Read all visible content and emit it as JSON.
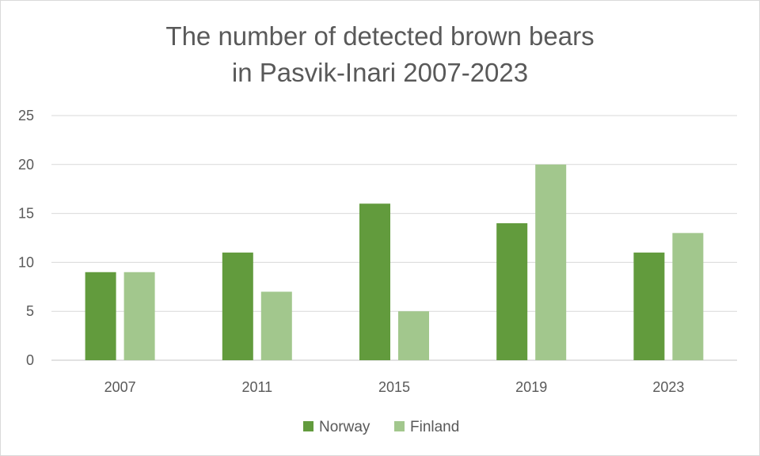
{
  "chart_data": {
    "type": "bar",
    "title_lines": [
      "The number of detected brown bears",
      "in Pasvik-Inari 2007-2023"
    ],
    "categories": [
      "2007",
      "2011",
      "2015",
      "2019",
      "2023"
    ],
    "series": [
      {
        "name": "Norway",
        "values": [
          9,
          11,
          16,
          14,
          11
        ],
        "color": "#629b3d"
      },
      {
        "name": "Finland",
        "values": [
          9,
          7,
          5,
          20,
          13
        ],
        "color": "#a2c78d"
      }
    ],
    "ylim": [
      0,
      25
    ],
    "yticks": [
      0,
      5,
      10,
      15,
      20,
      25
    ],
    "grid": true,
    "gridline_color": "#d9d9d9",
    "legend_position": "bottom"
  }
}
